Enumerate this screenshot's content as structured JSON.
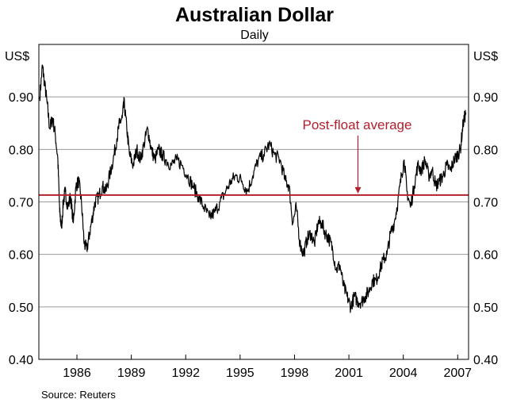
{
  "chart_data": {
    "type": "line",
    "title": "Australian Dollar",
    "subtitle": "Daily",
    "y_unit_left": "US$",
    "y_unit_right": "US$",
    "source": "Source: Reuters",
    "xlim": [
      1983.9,
      2007.6
    ],
    "ylim": [
      0.4,
      1.0
    ],
    "y_ticks": [
      0.4,
      0.5,
      0.6,
      0.7,
      0.8,
      0.9
    ],
    "y_tick_labels": [
      "0.40",
      "0.50",
      "0.60",
      "0.70",
      "0.80",
      "0.90"
    ],
    "x_ticks": [
      1986,
      1989,
      1992,
      1995,
      1998,
      2001,
      2004,
      2007
    ],
    "x_tick_labels": [
      "1986",
      "1989",
      "1992",
      "1995",
      "1998",
      "2001",
      "2004",
      "2007"
    ],
    "grid": true,
    "series": [
      {
        "color": "#000000",
        "x": [
          1983.95,
          1984.1,
          1984.2,
          1984.35,
          1984.5,
          1984.65,
          1984.8,
          1984.95,
          1985.05,
          1985.15,
          1985.25,
          1985.35,
          1985.5,
          1985.65,
          1985.8,
          1985.95,
          1986.1,
          1986.25,
          1986.4,
          1986.55,
          1986.7,
          1986.85,
          1987.0,
          1987.2,
          1987.4,
          1987.6,
          1987.8,
          1988.0,
          1988.2,
          1988.35,
          1988.5,
          1988.6,
          1988.75,
          1988.9,
          1989.1,
          1989.3,
          1989.5,
          1989.7,
          1989.9,
          1990.1,
          1990.3,
          1990.5,
          1990.7,
          1990.9,
          1991.2,
          1991.5,
          1991.8,
          1992.1,
          1992.4,
          1992.7,
          1993.0,
          1993.3,
          1993.6,
          1993.9,
          1994.2,
          1994.5,
          1994.8,
          1995.1,
          1995.4,
          1995.7,
          1996.0,
          1996.3,
          1996.6,
          1996.9,
          1997.2,
          1997.5,
          1997.7,
          1997.9,
          1998.1,
          1998.3,
          1998.5,
          1998.7,
          1998.9,
          1999.1,
          1999.3,
          1999.5,
          1999.7,
          1999.9,
          2000.1,
          2000.3,
          2000.5,
          2000.7,
          2000.9,
          2001.1,
          2001.3,
          2001.5,
          2001.7,
          2001.9,
          2002.1,
          2002.3,
          2002.5,
          2002.7,
          2002.9,
          2003.1,
          2003.3,
          2003.5,
          2003.7,
          2003.9,
          2004.05,
          2004.2,
          2004.4,
          2004.6,
          2004.8,
          2005.0,
          2005.2,
          2005.4,
          2005.6,
          2005.8,
          2006.0,
          2006.2,
          2006.4,
          2006.6,
          2006.8,
          2007.0,
          2007.15,
          2007.3,
          2007.45
        ],
        "y": [
          0.9,
          0.96,
          0.93,
          0.89,
          0.84,
          0.86,
          0.83,
          0.78,
          0.68,
          0.65,
          0.7,
          0.72,
          0.69,
          0.71,
          0.66,
          0.73,
          0.74,
          0.7,
          0.62,
          0.61,
          0.64,
          0.67,
          0.7,
          0.71,
          0.73,
          0.72,
          0.75,
          0.78,
          0.82,
          0.85,
          0.86,
          0.89,
          0.84,
          0.79,
          0.77,
          0.8,
          0.78,
          0.81,
          0.84,
          0.8,
          0.78,
          0.8,
          0.79,
          0.78,
          0.77,
          0.78,
          0.77,
          0.75,
          0.73,
          0.71,
          0.69,
          0.67,
          0.68,
          0.7,
          0.72,
          0.74,
          0.75,
          0.74,
          0.72,
          0.75,
          0.78,
          0.79,
          0.81,
          0.79,
          0.78,
          0.74,
          0.73,
          0.66,
          0.69,
          0.62,
          0.6,
          0.63,
          0.64,
          0.62,
          0.66,
          0.66,
          0.64,
          0.63,
          0.61,
          0.57,
          0.58,
          0.54,
          0.52,
          0.5,
          0.52,
          0.51,
          0.51,
          0.52,
          0.53,
          0.55,
          0.55,
          0.57,
          0.59,
          0.6,
          0.64,
          0.66,
          0.7,
          0.75,
          0.78,
          0.72,
          0.69,
          0.73,
          0.77,
          0.76,
          0.78,
          0.75,
          0.76,
          0.73,
          0.74,
          0.75,
          0.77,
          0.76,
          0.78,
          0.79,
          0.8,
          0.85,
          0.87
        ]
      },
      {
        "color": "#b2202e",
        "x": [
          1983.9,
          2007.6
        ],
        "y": [
          0.713,
          0.713
        ]
      }
    ],
    "annotations": [
      {
        "text": "Post-float average",
        "x": 2001.5,
        "y": 0.713
      }
    ]
  }
}
